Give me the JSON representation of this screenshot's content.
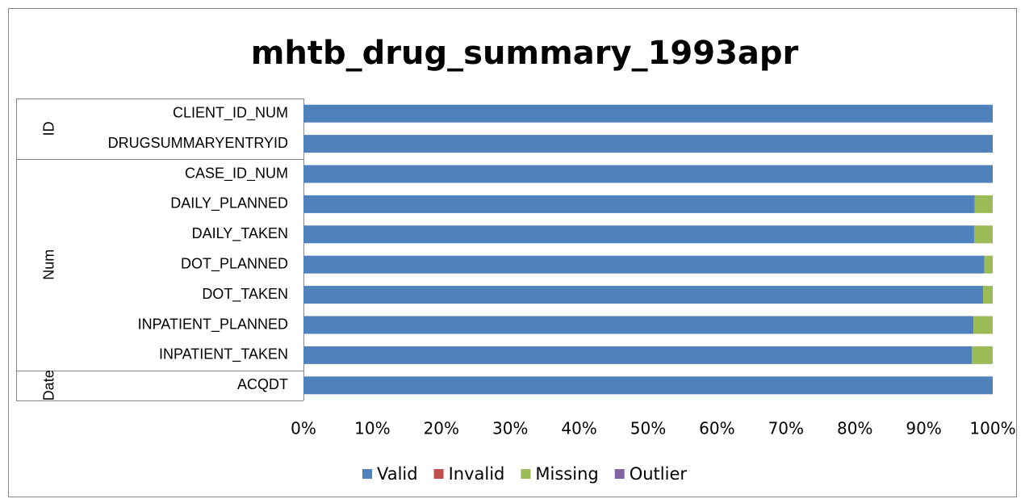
{
  "chart_data": {
    "type": "stacked-bar-horizontal",
    "title": "mhtb_drug_summary_1993apr",
    "groups": [
      {
        "label": "ID",
        "categories": [
          "CLIENT_ID_NUM",
          "DRUGSUMMARYENTRYID"
        ]
      },
      {
        "label": "Num",
        "categories": [
          "CASE_ID_NUM",
          "DAILY_PLANNED",
          "DAILY_TAKEN",
          "DOT_PLANNED",
          "DOT_TAKEN",
          "INPATIENT_PLANNED",
          "INPATIENT_TAKEN"
        ]
      },
      {
        "label": "Date",
        "categories": [
          "ACQDT"
        ]
      }
    ],
    "series": [
      {
        "name": "Valid",
        "color": "#4f81bd",
        "values": [
          100,
          100,
          100,
          97.4,
          97.3,
          98.8,
          98.6,
          97.2,
          97.0,
          100
        ]
      },
      {
        "name": "Invalid",
        "color": "#c0504d",
        "values": [
          0,
          0,
          0,
          0,
          0,
          0,
          0,
          0,
          0,
          0
        ]
      },
      {
        "name": "Missing",
        "color": "#9bbb59",
        "values": [
          0,
          0,
          0,
          2.6,
          2.7,
          1.2,
          1.4,
          2.8,
          3.0,
          0
        ]
      },
      {
        "name": "Outlier",
        "color": "#8064a2",
        "values": [
          0,
          0,
          0,
          0,
          0,
          0,
          0,
          0,
          0,
          0
        ]
      }
    ],
    "xlim": [
      0,
      100
    ],
    "xticks": [
      {
        "value": 0,
        "label": "0%"
      },
      {
        "value": 10,
        "label": "10%"
      },
      {
        "value": 20,
        "label": "20%"
      },
      {
        "value": 30,
        "label": "30%"
      },
      {
        "value": 40,
        "label": "40%"
      },
      {
        "value": 50,
        "label": "50%"
      },
      {
        "value": 60,
        "label": "60%"
      },
      {
        "value": 70,
        "label": "70%"
      },
      {
        "value": 80,
        "label": "80%"
      },
      {
        "value": 90,
        "label": "90%"
      },
      {
        "value": 100,
        "label": "100%"
      }
    ],
    "legend": "bottom"
  }
}
